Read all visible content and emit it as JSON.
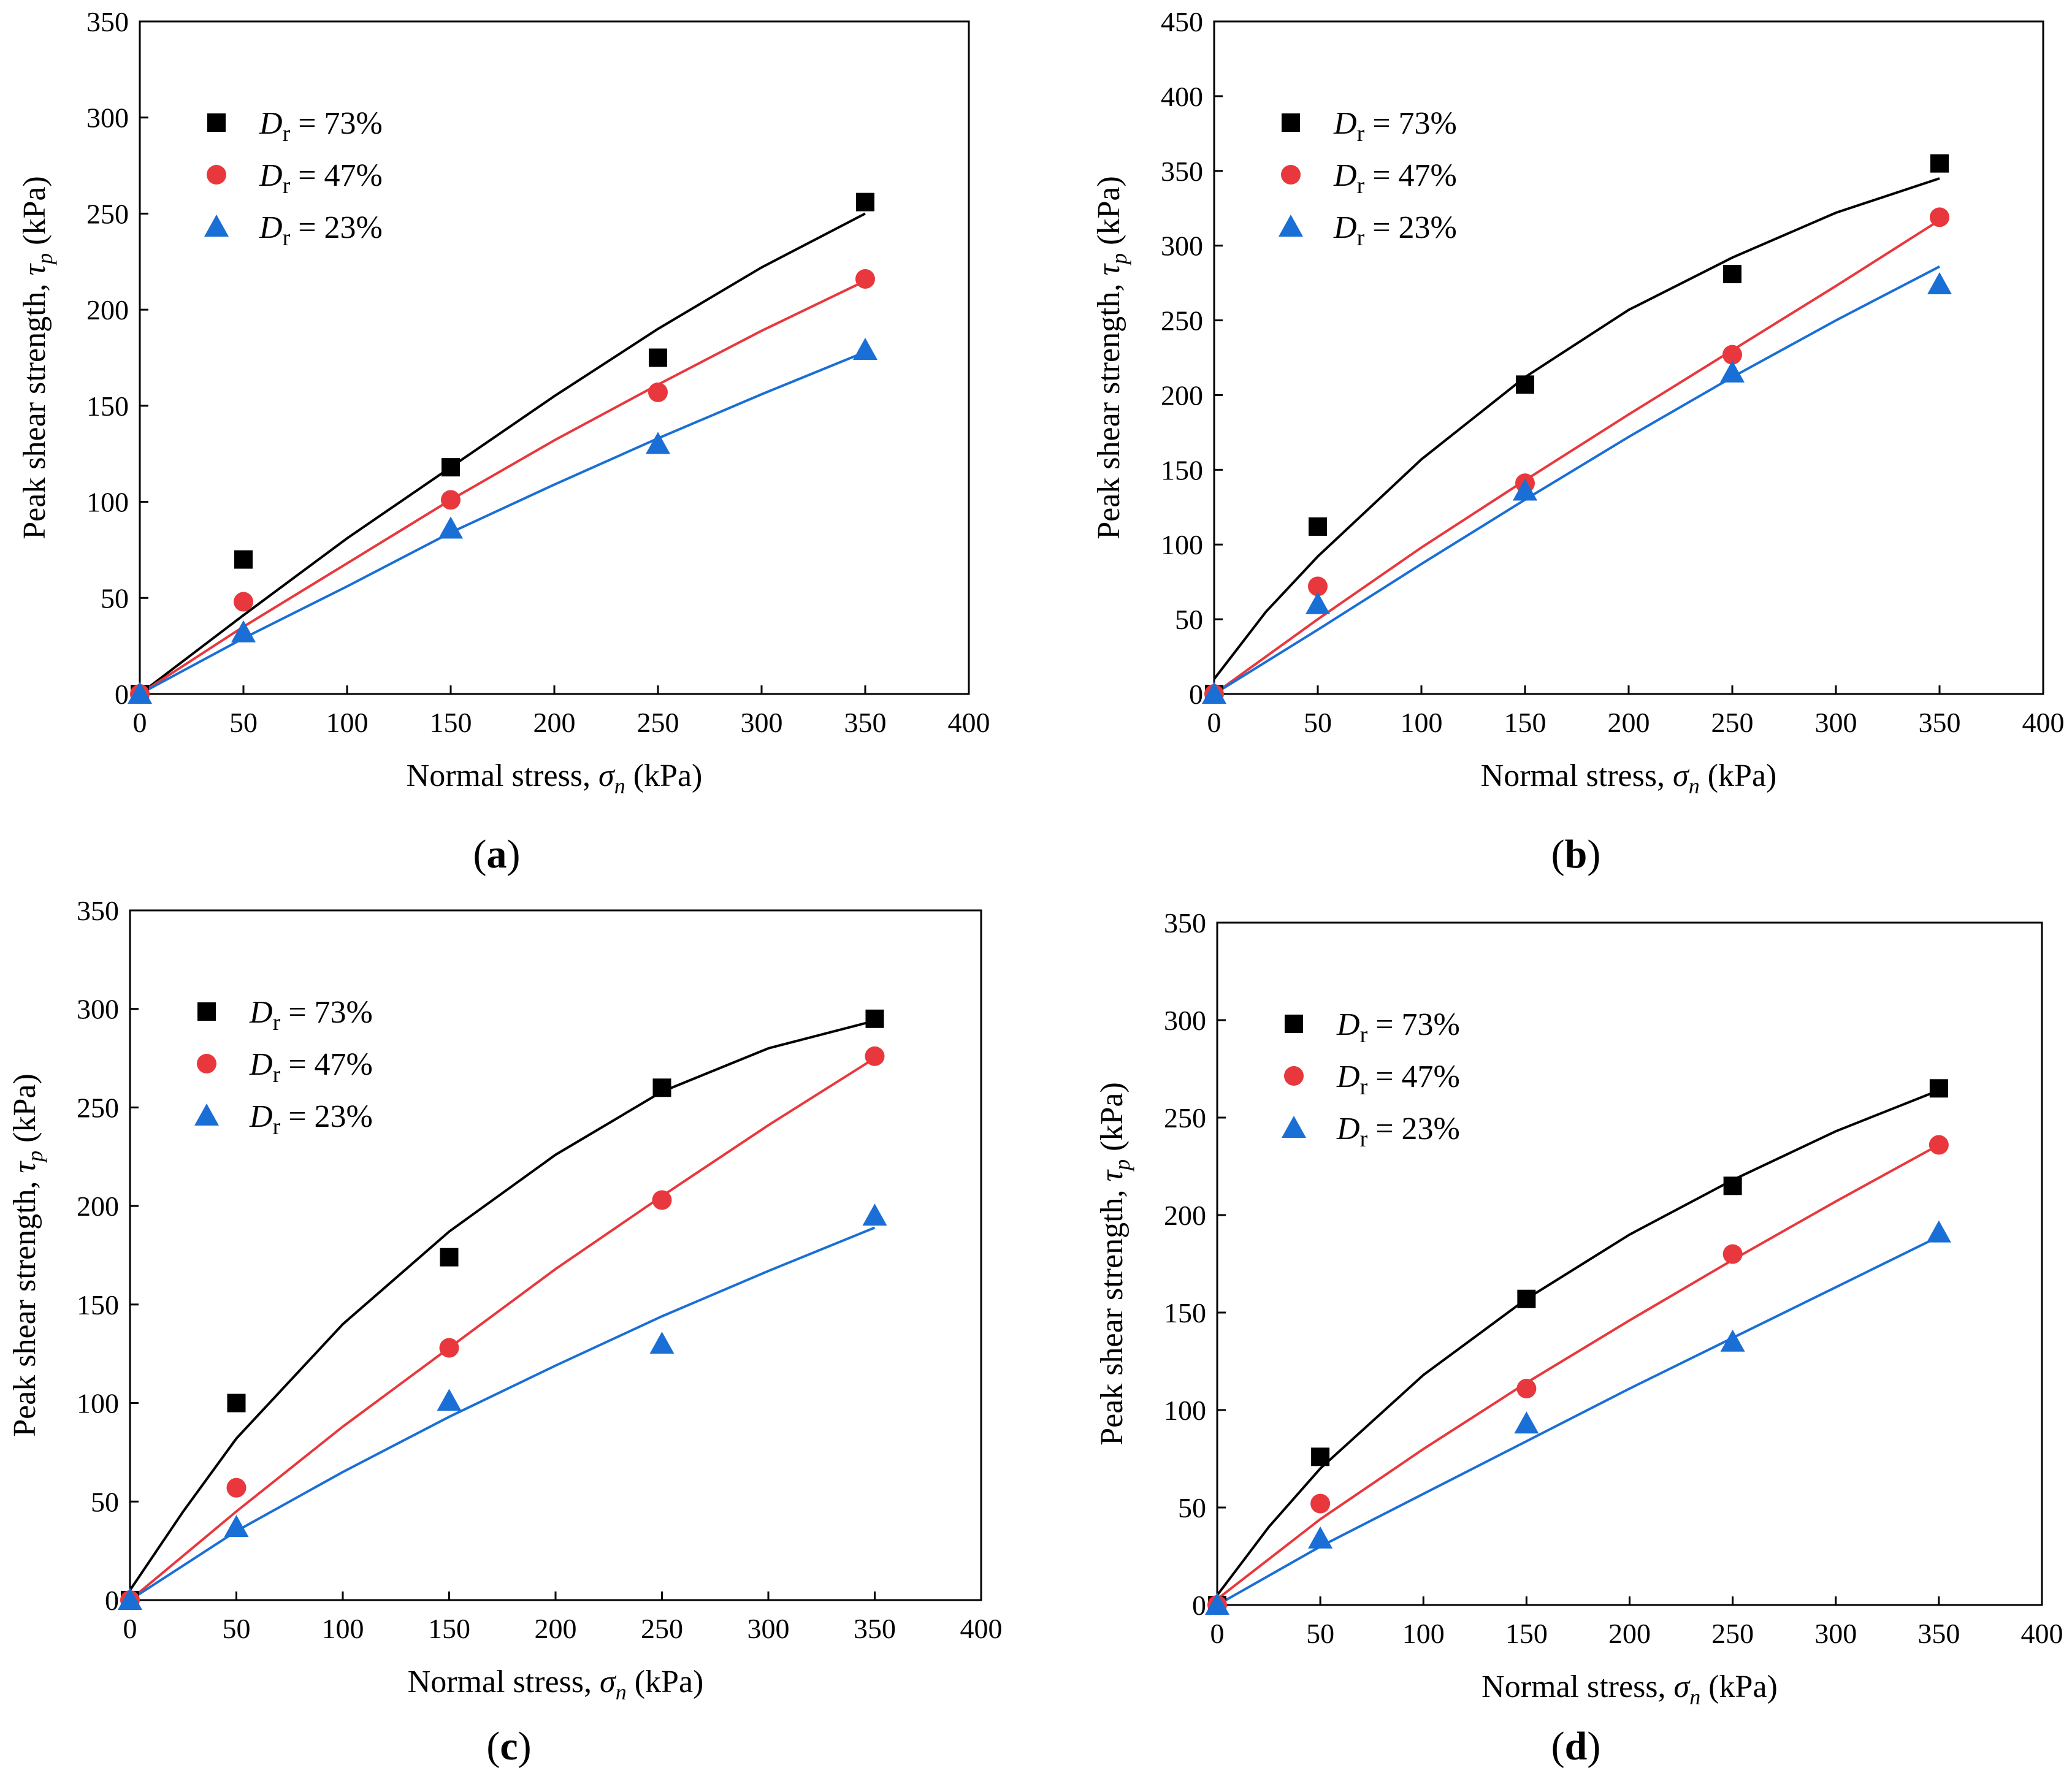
{
  "figure": {
    "colors": {
      "Dr73": "#000000",
      "Dr47": "#e8383d",
      "Dr23": "#1a6fd6"
    }
  },
  "chart_data": [
    {
      "type": "scatter",
      "panel": "a",
      "panel_label": "(a)",
      "xlabel": "Normal stress, σn (kPa)",
      "ylabel": "Peak shear strength, τp (kPa)",
      "xlim": [
        0,
        400
      ],
      "ylim": [
        0,
        350
      ],
      "xticks": [
        0,
        50,
        100,
        150,
        200,
        250,
        300,
        350,
        400
      ],
      "yticks": [
        0,
        50,
        100,
        150,
        200,
        250,
        300,
        350
      ],
      "legend_position": "top-left",
      "series": [
        {
          "name": "Dr = 73%",
          "label_main": "D",
          "label_sub": "r",
          "label_rest": " = 73%",
          "marker": "square",
          "color": "#000000",
          "x": [
            0,
            50,
            150,
            250,
            350
          ],
          "y": [
            0,
            70,
            118,
            175,
            256
          ],
          "fit_x": [
            0,
            50,
            100,
            150,
            200,
            250,
            300,
            350
          ],
          "fit_y": [
            0,
            41,
            81,
            118,
            155,
            190,
            222,
            250
          ]
        },
        {
          "name": "Dr = 47%",
          "label_main": "D",
          "label_sub": "r",
          "label_rest": " = 47%",
          "marker": "circle",
          "color": "#e8383d",
          "x": [
            0,
            50,
            150,
            250,
            350
          ],
          "y": [
            0,
            48,
            101,
            157,
            216
          ],
          "fit_x": [
            0,
            50,
            100,
            150,
            200,
            250,
            300,
            350
          ],
          "fit_y": [
            0,
            35,
            68,
            101,
            132,
            161,
            189,
            215
          ]
        },
        {
          "name": "Dr = 23%",
          "label_main": "D",
          "label_sub": "r",
          "label_rest": " = 23%",
          "marker": "triangle",
          "color": "#1a6fd6",
          "x": [
            0,
            50,
            150,
            250,
            350
          ],
          "y": [
            0,
            32,
            86,
            130,
            179
          ],
          "fit_x": [
            0,
            50,
            100,
            150,
            200,
            250,
            300,
            350
          ],
          "fit_y": [
            0,
            29,
            56,
            84,
            109,
            133,
            156,
            178
          ]
        }
      ]
    },
    {
      "type": "scatter",
      "panel": "b",
      "panel_label": "(b)",
      "xlabel": "Normal stress, σn (kPa)",
      "ylabel": "Peak shear strength, τp (kPa)",
      "xlim": [
        0,
        400
      ],
      "ylim": [
        0,
        450
      ],
      "xticks": [
        0,
        50,
        100,
        150,
        200,
        250,
        300,
        350,
        400
      ],
      "yticks": [
        0,
        50,
        100,
        150,
        200,
        250,
        300,
        350,
        400,
        450
      ],
      "legend_position": "top-left",
      "series": [
        {
          "name": "Dr = 73%",
          "label_main": "D",
          "label_sub": "r",
          "label_rest": " = 73%",
          "marker": "square",
          "color": "#000000",
          "x": [
            0,
            50,
            150,
            250,
            350
          ],
          "y": [
            0,
            112,
            207,
            281,
            355
          ],
          "fit_x": [
            0,
            25,
            50,
            100,
            150,
            200,
            250,
            300,
            350
          ],
          "fit_y": [
            10,
            55,
            92,
            157,
            212,
            257,
            292,
            322,
            345
          ]
        },
        {
          "name": "Dr = 47%",
          "label_main": "D",
          "label_sub": "r",
          "label_rest": " = 47%",
          "marker": "circle",
          "color": "#e8383d",
          "x": [
            0,
            50,
            150,
            250,
            350
          ],
          "y": [
            0,
            72,
            141,
            227,
            319
          ],
          "fit_x": [
            0,
            50,
            100,
            150,
            200,
            250,
            300,
            350
          ],
          "fit_y": [
            0,
            50,
            98,
            143,
            187,
            230,
            273,
            317
          ]
        },
        {
          "name": "Dr = 23%",
          "label_main": "D",
          "label_sub": "r",
          "label_rest": " = 23%",
          "marker": "triangle",
          "color": "#1a6fd6",
          "x": [
            0,
            50,
            150,
            250,
            350
          ],
          "y": [
            0,
            60,
            136,
            215,
            274
          ],
          "fit_x": [
            0,
            50,
            100,
            150,
            200,
            250,
            300,
            350
          ],
          "fit_y": [
            0,
            43,
            87,
            130,
            172,
            212,
            250,
            286
          ]
        }
      ]
    },
    {
      "type": "scatter",
      "panel": "c",
      "panel_label": "(c)",
      "xlabel": "Normal stress, σn (kPa)",
      "ylabel": "Peak shear strength, τp (kPa)",
      "xlim": [
        0,
        400
      ],
      "ylim": [
        0,
        350
      ],
      "xticks": [
        0,
        50,
        100,
        150,
        200,
        250,
        300,
        350,
        400
      ],
      "yticks": [
        0,
        50,
        100,
        150,
        200,
        250,
        300,
        350
      ],
      "legend_position": "top-left",
      "series": [
        {
          "name": "Dr = 73%",
          "label_main": "D",
          "label_sub": "r",
          "label_rest": " = 73%",
          "marker": "square",
          "color": "#000000",
          "x": [
            0,
            50,
            150,
            250,
            350
          ],
          "y": [
            0,
            100,
            174,
            260,
            295
          ],
          "fit_x": [
            0,
            25,
            50,
            100,
            150,
            200,
            250,
            300,
            350
          ],
          "fit_y": [
            5,
            45,
            82,
            140,
            187,
            226,
            258,
            280,
            294
          ]
        },
        {
          "name": "Dr = 47%",
          "label_main": "D",
          "label_sub": "r",
          "label_rest": " = 47%",
          "marker": "circle",
          "color": "#e8383d",
          "x": [
            0,
            50,
            150,
            250,
            350
          ],
          "y": [
            0,
            57,
            128,
            203,
            276
          ],
          "fit_x": [
            0,
            50,
            100,
            150,
            200,
            250,
            300,
            350
          ],
          "fit_y": [
            0,
            45,
            88,
            128,
            168,
            205,
            241,
            275
          ]
        },
        {
          "name": "Dr = 23%",
          "label_main": "D",
          "label_sub": "r",
          "label_rest": " = 23%",
          "marker": "triangle",
          "color": "#1a6fd6",
          "x": [
            0,
            50,
            150,
            250,
            350
          ],
          "y": [
            0,
            37,
            101,
            130,
            195
          ],
          "fit_x": [
            0,
            50,
            100,
            150,
            200,
            250,
            300,
            350
          ],
          "fit_y": [
            0,
            35,
            65,
            93,
            119,
            144,
            167,
            189
          ]
        }
      ]
    },
    {
      "type": "scatter",
      "panel": "d",
      "panel_label": "(d)",
      "xlabel": "Normal stress, σn (kPa)",
      "ylabel": "Peak shear strength, τp (kPa)",
      "xlim": [
        0,
        400
      ],
      "ylim": [
        0,
        350
      ],
      "xticks": [
        0,
        50,
        100,
        150,
        200,
        250,
        300,
        350,
        400
      ],
      "yticks": [
        0,
        50,
        100,
        150,
        200,
        250,
        300,
        350
      ],
      "legend_position": "top-left",
      "series": [
        {
          "name": "Dr = 73%",
          "label_main": "D",
          "label_sub": "r",
          "label_rest": " = 73%",
          "marker": "square",
          "color": "#000000",
          "x": [
            0,
            50,
            150,
            250,
            350
          ],
          "y": [
            0,
            76,
            157,
            215,
            265
          ],
          "fit_x": [
            0,
            25,
            50,
            100,
            150,
            200,
            250,
            300,
            350
          ],
          "fit_y": [
            5,
            40,
            70,
            118,
            157,
            190,
            218,
            243,
            264
          ]
        },
        {
          "name": "Dr = 47%",
          "label_main": "D",
          "label_sub": "r",
          "label_rest": " = 47%",
          "marker": "circle",
          "color": "#e8383d",
          "x": [
            0,
            50,
            150,
            250,
            350
          ],
          "y": [
            0,
            52,
            111,
            180,
            236
          ],
          "fit_x": [
            0,
            50,
            100,
            150,
            200,
            250,
            300,
            350
          ],
          "fit_y": [
            3,
            44,
            80,
            114,
            146,
            177,
            207,
            236
          ]
        },
        {
          "name": "Dr = 23%",
          "label_main": "D",
          "label_sub": "r",
          "label_rest": " = 23%",
          "marker": "triangle",
          "color": "#1a6fd6",
          "x": [
            0,
            50,
            150,
            250,
            350
          ],
          "y": [
            0,
            34,
            93,
            135,
            191
          ],
          "fit_x": [
            0,
            50,
            100,
            150,
            200,
            250,
            300,
            350
          ],
          "fit_y": [
            0,
            30,
            57,
            84,
            111,
            137,
            163,
            189
          ]
        }
      ]
    }
  ]
}
